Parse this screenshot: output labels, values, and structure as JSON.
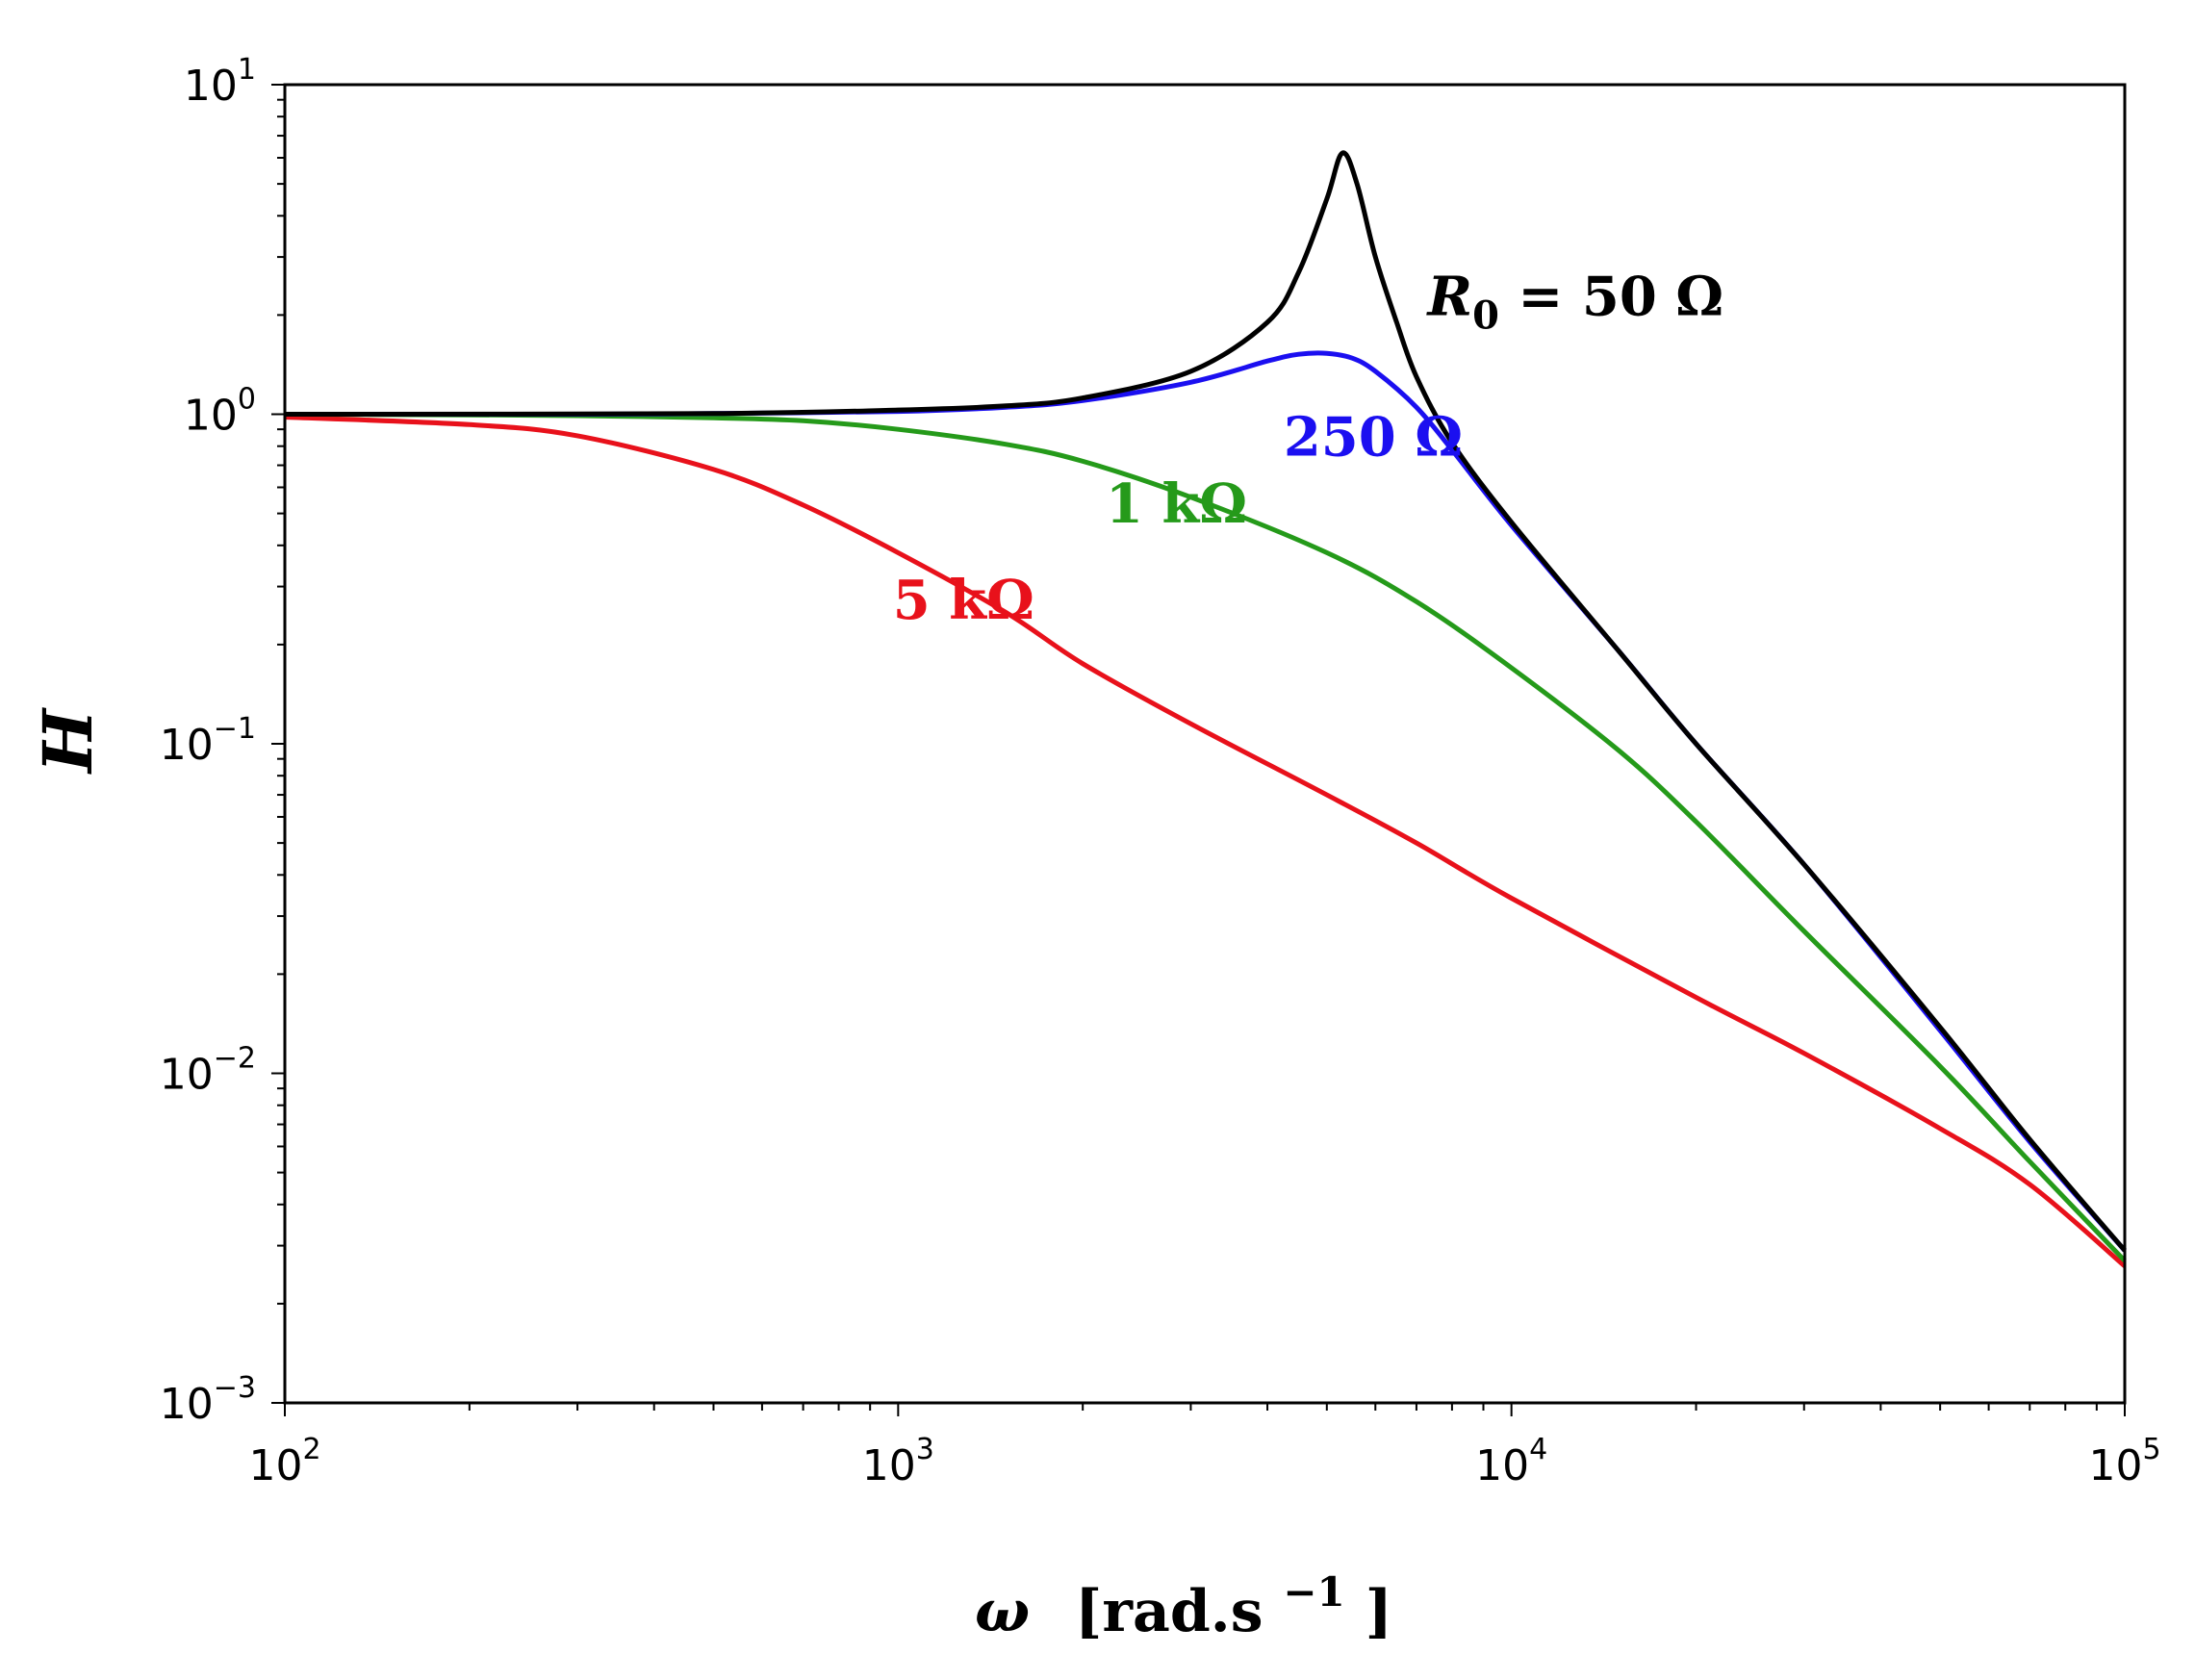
{
  "chart_data": {
    "type": "line",
    "title": "",
    "xscale": "log",
    "yscale": "log",
    "xlim": [
      100,
      100000
    ],
    "ylim": [
      0.001,
      10
    ],
    "xlabel": {
      "symbol": "ω",
      "unit": "[rad.s",
      "exp": "−1",
      "close": "]"
    },
    "ylabel": "H",
    "x_ticks": [
      {
        "base": "10",
        "exp": "2",
        "value": 100
      },
      {
        "base": "10",
        "exp": "3",
        "value": 1000
      },
      {
        "base": "10",
        "exp": "4",
        "value": 10000
      },
      {
        "base": "10",
        "exp": "5",
        "value": 100000
      }
    ],
    "y_ticks": [
      {
        "base": "10",
        "exp": "−3",
        "value": 0.001
      },
      {
        "base": "10",
        "exp": "−2",
        "value": 0.01
      },
      {
        "base": "10",
        "exp": "−1",
        "value": 0.1
      },
      {
        "base": "10",
        "exp": "0",
        "value": 1
      },
      {
        "base": "10",
        "exp": "1",
        "value": 10
      }
    ],
    "grid": false,
    "series": [
      {
        "name": "5 kΩ",
        "color": "#e8111b",
        "label_pos": [
          980,
          0.24
        ],
        "points": [
          [
            100,
            0.98
          ],
          [
            200,
            0.93
          ],
          [
            300,
            0.86
          ],
          [
            500,
            0.68
          ],
          [
            700,
            0.53
          ],
          [
            1000,
            0.38
          ],
          [
            1500,
            0.25
          ],
          [
            2000,
            0.175
          ],
          [
            3000,
            0.115
          ],
          [
            5000,
            0.07
          ],
          [
            7000,
            0.05
          ],
          [
            10000,
            0.034
          ],
          [
            20000,
            0.017
          ],
          [
            30000,
            0.0115
          ],
          [
            50000,
            0.0068
          ],
          [
            70000,
            0.0046
          ],
          [
            100000,
            0.0026
          ]
        ]
      },
      {
        "name": "1 kΩ",
        "color": "#259a1a",
        "label_pos": [
          2180,
          0.47
        ],
        "points": [
          [
            100,
            1.0
          ],
          [
            200,
            0.995
          ],
          [
            300,
            0.99
          ],
          [
            500,
            0.975
          ],
          [
            700,
            0.955
          ],
          [
            1000,
            0.9
          ],
          [
            1500,
            0.81
          ],
          [
            2000,
            0.72
          ],
          [
            3000,
            0.56
          ],
          [
            5000,
            0.38
          ],
          [
            7000,
            0.27
          ],
          [
            10000,
            0.17
          ],
          [
            15000,
            0.095
          ],
          [
            20000,
            0.058
          ],
          [
            30000,
            0.027
          ],
          [
            50000,
            0.0105
          ],
          [
            70000,
            0.0054
          ],
          [
            100000,
            0.0027
          ]
        ]
      },
      {
        "name": "250 Ω",
        "color": "#1b0ff0",
        "label_pos": [
          4250,
          0.75
        ],
        "points": [
          [
            100,
            1.0
          ],
          [
            300,
            1.0
          ],
          [
            500,
            1.005
          ],
          [
            1000,
            1.02
          ],
          [
            1500,
            1.05
          ],
          [
            2000,
            1.1
          ],
          [
            3000,
            1.25
          ],
          [
            4000,
            1.45
          ],
          [
            4500,
            1.52
          ],
          [
            5000,
            1.53
          ],
          [
            5500,
            1.48
          ],
          [
            6000,
            1.35
          ],
          [
            7000,
            1.05
          ],
          [
            8000,
            0.78
          ],
          [
            10000,
            0.46
          ],
          [
            15000,
            0.19
          ],
          [
            20000,
            0.1
          ],
          [
            30000,
            0.043
          ],
          [
            50000,
            0.0135
          ],
          [
            70000,
            0.0062
          ],
          [
            100000,
            0.0029
          ]
        ]
      },
      {
        "name": "R",
        "sub": "0",
        "eq": " = 50 Ω",
        "color": "#000000",
        "label_pos": [
          7300,
          2.0
        ],
        "points": [
          [
            100,
            1.0
          ],
          [
            500,
            1.005
          ],
          [
            1000,
            1.03
          ],
          [
            1500,
            1.06
          ],
          [
            2000,
            1.12
          ],
          [
            3000,
            1.35
          ],
          [
            4000,
            1.9
          ],
          [
            4500,
            2.7
          ],
          [
            5000,
            4.5
          ],
          [
            5300,
            6.2
          ],
          [
            5600,
            5.0
          ],
          [
            6000,
            3.0
          ],
          [
            6500,
            1.9
          ],
          [
            7000,
            1.3
          ],
          [
            8000,
            0.82
          ],
          [
            10000,
            0.47
          ],
          [
            15000,
            0.19
          ],
          [
            20000,
            0.1
          ],
          [
            30000,
            0.043
          ],
          [
            50000,
            0.0138
          ],
          [
            70000,
            0.0063
          ],
          [
            100000,
            0.0029
          ]
        ]
      }
    ]
  }
}
